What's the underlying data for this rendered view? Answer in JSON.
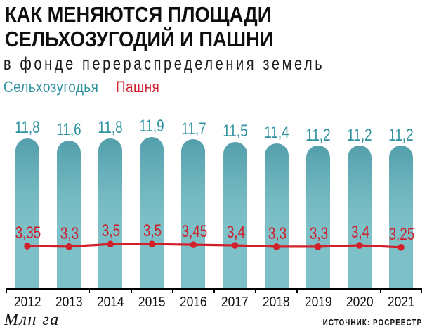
{
  "title": {
    "line1": "КАК МЕНЯЮТСЯ ПЛОЩАДИ",
    "line2": "СЕЛЬХОЗУГОДИЙ И ПАШНИ"
  },
  "subtitle": "в фонде перераспределения земель",
  "legend": [
    {
      "label": "Сельхозугодья",
      "color": "#2d91a0"
    },
    {
      "label": "Пашня",
      "color": "#ce1f2d"
    }
  ],
  "footer": {
    "units": "Млн га",
    "source": "ИСТОЧНИК: РОСРЕЕСТР"
  },
  "colors": {
    "bar_top": "#549fac",
    "bar_bottom": "#7dc0c8",
    "bar_value_text": "#2d91a0",
    "line": "#d2202a",
    "line_value_text": "#ce1f2d",
    "axis": "#000000",
    "background": "#ffffff"
  },
  "chart_data": {
    "type": "bar",
    "title": "КАК МЕНЯЮТСЯ ПЛОЩАДИ СЕЛЬХОЗУГОДИЙ И ПАШНИ",
    "subtitle": "в фонде перераспределения земель",
    "categories": [
      "2012",
      "2013",
      "2014",
      "2015",
      "2016",
      "2017",
      "2018",
      "2019",
      "2020",
      "2021"
    ],
    "series": [
      {
        "name": "Сельхозугодья",
        "type": "bar",
        "values": [
          11.8,
          11.6,
          11.8,
          11.9,
          11.7,
          11.5,
          11.4,
          11.2,
          11.2,
          11.2
        ],
        "labels": [
          "11,8",
          "11,6",
          "11,8",
          "11,9",
          "11,7",
          "11,5",
          "11,4",
          "11,2",
          "11,2",
          "11,2"
        ]
      },
      {
        "name": "Пашня",
        "type": "line",
        "values": [
          3.35,
          3.3,
          3.5,
          3.5,
          3.45,
          3.4,
          3.3,
          3.3,
          3.4,
          3.25
        ],
        "labels": [
          "3,35",
          "3,3",
          "3,5",
          "3,5",
          "3,45",
          "3,4",
          "3,3",
          "3,3",
          "3,4",
          "3,25"
        ]
      }
    ],
    "ylabel": "Млн га",
    "ylim": [
      0,
      11.9
    ],
    "grid": false,
    "legend_position": "top-left",
    "value_labels": true
  }
}
